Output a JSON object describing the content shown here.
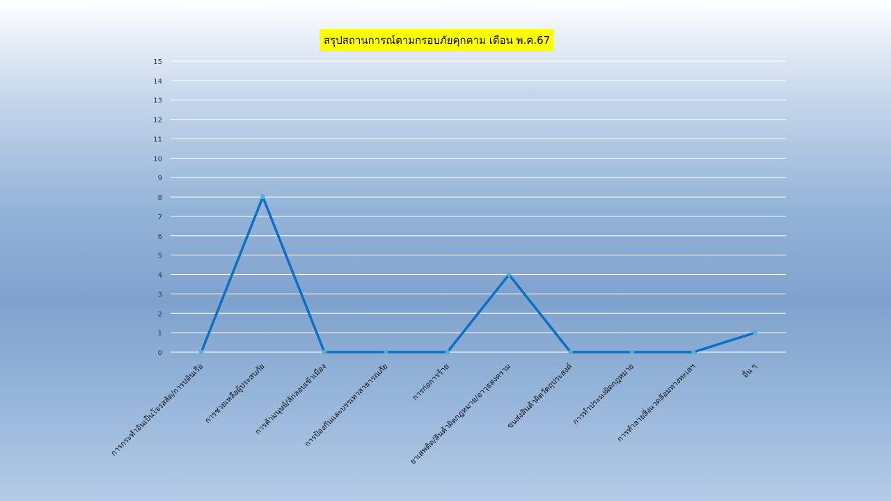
{
  "chart_data": {
    "type": "line",
    "title": "สรุปสถานการณ์ตามกรอบภัยคุกคาม เดือน พ.ค.67",
    "categories": [
      "การกระทำอันเป็นโจรสลัด/การปล้นเรือ",
      "การช่วยเหลือผู้ประสบภัย",
      "การค้ามนุษย์/ลักลอบเข้าเมือง",
      "การป้องกันและบรรเทาสาธารณภัย",
      "การก่อการร้าย",
      "ยาเสพติด/สินค้าผิดกฎหมาย/อาวุธสงคราม",
      "ขนส่งสินค้าผิดวัตถุประสงค์",
      "การทำประมงผิดกฎหมาย",
      "การทำลายสิ่งแวดล้อมทางทะเลฯ",
      "อื่น ๆ"
    ],
    "values": [
      0,
      8,
      0,
      0,
      0,
      4,
      0,
      0,
      0,
      1
    ],
    "ylim": [
      0,
      15
    ],
    "yticks": [
      "0",
      "1",
      "2",
      "3",
      "4",
      "5",
      "6",
      "7",
      "8",
      "9",
      "10",
      "11",
      "12",
      "13",
      "14",
      "15"
    ],
    "grid": true,
    "line_color": "#0b6fc4",
    "marker_color": "#4fb3c9",
    "xlabel": "",
    "ylabel": ""
  },
  "colors": {
    "title_background": "#ffff00",
    "gridline": "#ffffff"
  }
}
